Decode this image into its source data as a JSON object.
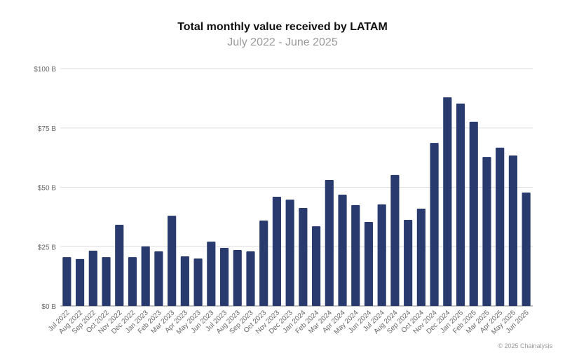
{
  "chart_data": {
    "type": "bar",
    "title": "Total monthly value received by LATAM",
    "subtitle": "July 2022 - June 2025",
    "xlabel": "",
    "ylabel": "",
    "ylim": [
      0,
      100
    ],
    "yticks": [
      0,
      25,
      50,
      75,
      100
    ],
    "ytick_labels": [
      "$0 B",
      "$25 B",
      "$50 B",
      "$75 B",
      "$100 B"
    ],
    "grid": true,
    "bar_color": "#293a6e",
    "categories": [
      "Jul 2022",
      "Aug 2022",
      "Sep 2022",
      "Oct 2022",
      "Nov 2022",
      "Dec 2022",
      "Jan 2023",
      "Feb 2023",
      "Mar 2023",
      "Apr 2023",
      "May 2023",
      "Jun 2023",
      "Jul 2023",
      "Aug 2023",
      "Sep 2023",
      "Oct 2023",
      "Nov 2023",
      "Dec 2023",
      "Jan 2024",
      "Feb 2024",
      "Mar 2024",
      "Apr 2024",
      "May 2024",
      "Jun 2024",
      "Jul 2024",
      "Aug 2024",
      "Sep 2024",
      "Oct 2024",
      "Nov 2024",
      "Dec 2024",
      "Jan 2025",
      "Feb 2025",
      "Mar 2025",
      "Apr 2025",
      "May 2025",
      "Jun 2025"
    ],
    "values": [
      20.6,
      19.8,
      23.3,
      20.6,
      34.2,
      20.6,
      25.1,
      23.0,
      38.0,
      20.9,
      20.0,
      27.1,
      24.5,
      23.6,
      23.0,
      36.0,
      46.0,
      44.8,
      41.3,
      33.6,
      53.1,
      46.9,
      42.5,
      35.4,
      42.8,
      55.2,
      36.3,
      41.0,
      68.7,
      87.9,
      85.3,
      77.6,
      62.8,
      66.7,
      63.4,
      47.8
    ]
  },
  "footer": {
    "credit": "© 2025 Chainalysis"
  }
}
